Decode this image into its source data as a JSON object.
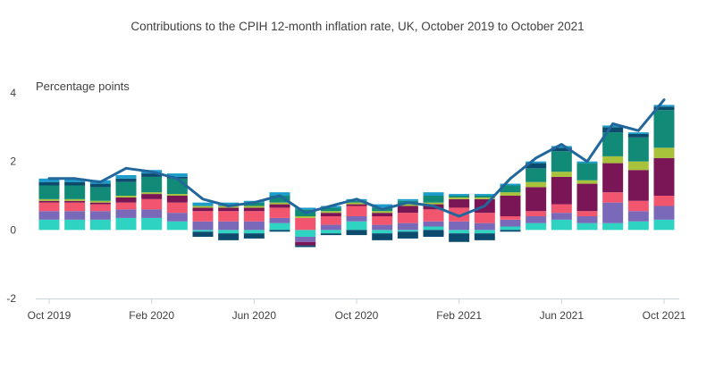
{
  "chart_data": {
    "type": "bar",
    "subtype": "stacked bar with line overlay",
    "title": "Contributions to the CPIH 12-month inflation rate, UK, October 2019 to October 2021",
    "ylabel": "Percentage points",
    "ylim": [
      -2,
      4
    ],
    "y_ticks": [
      "4",
      "2",
      "0",
      "-2"
    ],
    "y_tick_values": [
      4,
      2,
      0,
      -2
    ],
    "grid": false,
    "legend": "none",
    "categories": [
      "Oct 2019",
      "Nov 2019",
      "Dec 2019",
      "Jan 2020",
      "Feb 2020",
      "Mar 2020",
      "Apr 2020",
      "May 2020",
      "Jun 2020",
      "Jul 2020",
      "Aug 2020",
      "Sep 2020",
      "Oct 2020",
      "Nov 2020",
      "Dec 2020",
      "Jan 2021",
      "Feb 2021",
      "Mar 2021",
      "Apr 2021",
      "May 2021",
      "Jun 2021",
      "Jul 2021",
      "Aug 2021",
      "Sep 2021",
      "Oct 2021"
    ],
    "x_tick_labels": [
      "Oct 2019",
      "Feb 2020",
      "Jun 2020",
      "Oct 2020",
      "Feb 2021",
      "Jun 2021",
      "Oct 2021"
    ],
    "x_tick_indices": [
      0,
      4,
      8,
      12,
      16,
      20,
      24
    ],
    "series_colors": [
      "#2ed3c2",
      "#7a68b8",
      "#f2566e",
      "#7a1556",
      "#a8c23b",
      "#128a78",
      "#0c4a6e",
      "#1b9cca"
    ],
    "series": [
      {
        "values": [
          0.3,
          0.3,
          0.3,
          0.35,
          0.35,
          0.25,
          -0.05,
          -0.1,
          -0.1,
          0.2,
          -0.2,
          -0.1,
          0.25,
          -0.1,
          -0.05,
          0.1,
          -0.1,
          -0.1,
          0.1,
          0.2,
          0.3,
          0.2,
          0.2,
          0.25,
          0.3
        ]
      },
      {
        "values": [
          0.25,
          0.25,
          0.25,
          0.25,
          0.25,
          0.25,
          0.25,
          0.25,
          0.25,
          0.15,
          -0.15,
          0.15,
          0.15,
          0.15,
          0.2,
          0.15,
          0.25,
          0.2,
          0.2,
          0.2,
          0.2,
          0.2,
          0.6,
          0.3,
          0.4
        ]
      },
      {
        "values": [
          0.25,
          0.25,
          0.2,
          0.2,
          0.3,
          0.3,
          0.3,
          0.3,
          0.3,
          0.3,
          0.35,
          0.25,
          0.3,
          0.25,
          0.3,
          0.35,
          0.4,
          0.3,
          0.1,
          0.15,
          0.25,
          0.15,
          0.3,
          0.3,
          0.3
        ]
      },
      {
        "values": [
          0.05,
          0.05,
          0.05,
          0.15,
          0.15,
          0.2,
          0.1,
          0.1,
          0.1,
          0.1,
          -0.1,
          0.1,
          0.05,
          0.1,
          0.2,
          0.15,
          0.25,
          0.4,
          0.6,
          0.7,
          0.8,
          0.8,
          0.85,
          0.9,
          1.1
        ]
      },
      {
        "values": [
          0.05,
          0.05,
          0.05,
          0.05,
          0.05,
          0.05,
          0.05,
          0.05,
          0.05,
          0.05,
          0.05,
          0.05,
          0.05,
          0.05,
          0.05,
          0.05,
          0.05,
          0.05,
          0.1,
          0.15,
          0.15,
          0.1,
          0.2,
          0.25,
          0.3
        ]
      },
      {
        "values": [
          0.4,
          0.4,
          0.4,
          0.4,
          0.45,
          0.45,
          0.0,
          0.0,
          0.1,
          0.2,
          0.2,
          0.1,
          0.05,
          0.1,
          0.1,
          0.2,
          0.05,
          0.05,
          0.2,
          0.4,
          0.6,
          0.5,
          0.7,
          0.7,
          1.1
        ]
      },
      {
        "values": [
          0.1,
          0.1,
          0.1,
          0.1,
          0.1,
          0.05,
          -0.15,
          -0.2,
          -0.15,
          -0.05,
          -0.05,
          -0.05,
          -0.15,
          -0.2,
          -0.2,
          -0.2,
          -0.25,
          -0.2,
          -0.05,
          0.15,
          0.1,
          0.0,
          0.15,
          0.1,
          0.1
        ]
      },
      {
        "values": [
          0.1,
          0.1,
          0.1,
          0.1,
          0.1,
          0.1,
          0.1,
          0.1,
          0.05,
          0.1,
          0.05,
          0.05,
          0.05,
          0.1,
          0.05,
          0.1,
          0.05,
          0.05,
          0.05,
          0.05,
          0.05,
          0.05,
          0.05,
          0.05,
          0.05
        ]
      }
    ],
    "line": {
      "color": "#22679c",
      "values": [
        1.5,
        1.5,
        1.4,
        1.8,
        1.7,
        1.5,
        0.9,
        0.7,
        0.8,
        1.0,
        0.5,
        0.7,
        0.9,
        0.6,
        0.8,
        0.7,
        0.4,
        0.7,
        1.5,
        2.1,
        2.5,
        2.0,
        3.1,
        2.9,
        3.8
      ]
    }
  }
}
